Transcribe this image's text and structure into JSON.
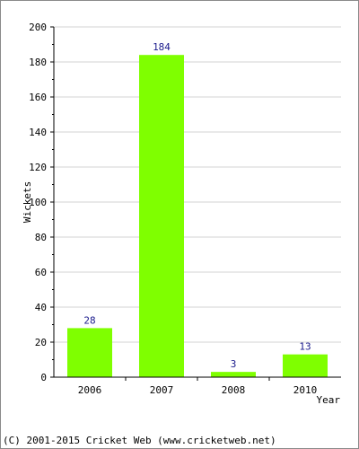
{
  "chart_data": {
    "type": "bar",
    "categories": [
      "2006",
      "2007",
      "2008",
      "2010"
    ],
    "values": [
      28,
      184,
      3,
      13
    ],
    "data_labels": [
      "28",
      "184",
      "3",
      "13"
    ],
    "title": "",
    "xlabel": "Year",
    "ylabel": "Wickets",
    "ylim": [
      0,
      200
    ],
    "yticks": [
      "0",
      "20",
      "40",
      "60",
      "80",
      "100",
      "120",
      "140",
      "160",
      "180",
      "200"
    ],
    "grid": true,
    "bar_color": "#7fff00",
    "grid_color": "#d3d3d3",
    "label_color": "#1a1a8c"
  },
  "footer": {
    "copyright": "(C) 2001-2015 Cricket Web (www.cricketweb.net)"
  }
}
